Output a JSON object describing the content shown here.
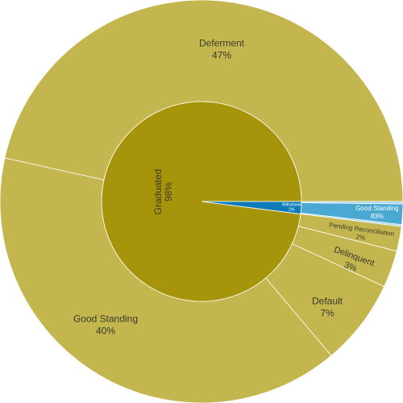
{
  "chart_data": {
    "type": "sunburst",
    "colors": {
      "inner_graduated": "#a6950a",
      "outer_graduated": "#c4b64f",
      "inner_withdrawn": "#0f7cb8",
      "outer_withdrawn": "#4aa9d3",
      "outer_withdrawn_minor": "#9fd1e8",
      "label_dark": "#3b3b2a",
      "label_white": "#ffffff",
      "edge": "#ffffff"
    },
    "inner": [
      {
        "name": "Graduated",
        "percent_label": "98%",
        "value": 98
      },
      {
        "name": "Withdrawn",
        "percent_label": "2%",
        "value": 2
      }
    ],
    "outer": [
      {
        "parent": "Graduated",
        "name": "Deferment",
        "percent_label": "47%",
        "value": 47
      },
      {
        "parent": "Graduated",
        "name": "Good Standing",
        "percent_label": "40%",
        "value": 40
      },
      {
        "parent": "Graduated",
        "name": "Default",
        "percent_label": "7%",
        "value": 7
      },
      {
        "parent": "Graduated",
        "name": "Delinquent",
        "percent_label": "3%",
        "value": 3
      },
      {
        "parent": "Graduated",
        "name": "Pending Reconciliation",
        "percent_label": "2%",
        "value": 2
      },
      {
        "parent": "Withdrawn",
        "name": "",
        "percent_label": "",
        "value": 0.15
      },
      {
        "parent": "Withdrawn",
        "name": "Good Standing",
        "percent_label": "83%",
        "value": 1.66
      },
      {
        "parent": "Withdrawn",
        "name": "",
        "percent_label": "",
        "value": 0.19
      }
    ]
  }
}
